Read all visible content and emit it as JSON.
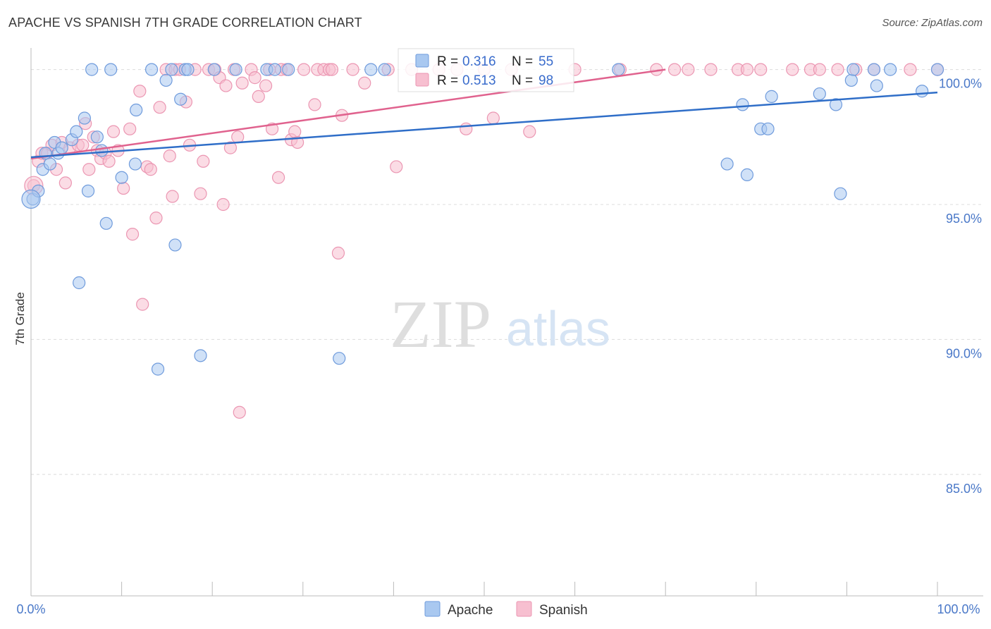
{
  "title": "APACHE VS SPANISH 7TH GRADE CORRELATION CHART",
  "source": "Source: ZipAtlas.com",
  "watermark": {
    "zip": "ZIP",
    "atlas": "atlas"
  },
  "colors": {
    "apache_fill": "#a9c8f0",
    "apache_stroke": "#6f9bdc",
    "apache_line": "#2f6ec8",
    "spanish_fill": "#f7bfd0",
    "spanish_stroke": "#eb96b2",
    "spanish_line": "#e0628e",
    "grid": "#dcdcdc",
    "tick_text": "#4a78c8"
  },
  "chart_data": {
    "type": "scatter",
    "title": "APACHE VS SPANISH 7TH GRADE CORRELATION CHART",
    "xlabel": "",
    "ylabel": "7th Grade",
    "xlim": [
      0,
      100
    ],
    "ylim": [
      80.5,
      100.8
    ],
    "x_tick_labels": [
      "0.0%",
      "100.0%"
    ],
    "y_ticks": [
      100,
      95,
      90,
      85
    ],
    "y_tick_labels": [
      "100.0%",
      "95.0%",
      "90.0%",
      "85.0%"
    ],
    "grid": true,
    "legend_placement": "top-center",
    "stats": [
      {
        "r_label": "R = ",
        "r_value": "0.316",
        "n_label": "N = ",
        "n_value": "55"
      },
      {
        "r_label": "R = ",
        "r_value": "0.513",
        "n_label": "N = ",
        "n_value": "98"
      }
    ],
    "series": [
      {
        "name": "Apache",
        "trend": [
          [
            0,
            96.75
          ],
          [
            100,
            99.15
          ]
        ],
        "points": [
          [
            0.2,
            95.2
          ],
          [
            0.8,
            95.5
          ],
          [
            1.3,
            96.3
          ],
          [
            1.6,
            96.9
          ],
          [
            2.1,
            96.5
          ],
          [
            2.6,
            97.3
          ],
          [
            3.0,
            96.9
          ],
          [
            3.4,
            97.1
          ],
          [
            4.5,
            97.4
          ],
          [
            5.0,
            97.7
          ],
          [
            5.9,
            98.2
          ],
          [
            6.3,
            95.5
          ],
          [
            7.3,
            97.5
          ],
          [
            7.8,
            97.0
          ],
          [
            8.3,
            94.3
          ],
          [
            5.3,
            92.1
          ],
          [
            6.7,
            100.0
          ],
          [
            8.8,
            100.0
          ],
          [
            10.0,
            96.0
          ],
          [
            11.5,
            96.5
          ],
          [
            11.6,
            98.5
          ],
          [
            13.3,
            100.0
          ],
          [
            14.0,
            88.9
          ],
          [
            14.9,
            99.6
          ],
          [
            15.5,
            100.0
          ],
          [
            15.9,
            93.5
          ],
          [
            16.5,
            98.9
          ],
          [
            17.0,
            100.0
          ],
          [
            17.3,
            100.0
          ],
          [
            18.7,
            89.4
          ],
          [
            20.2,
            100.0
          ],
          [
            22.6,
            100.0
          ],
          [
            26.0,
            100.0
          ],
          [
            26.9,
            100.0
          ],
          [
            28.4,
            100.0
          ],
          [
            34.0,
            89.3
          ],
          [
            37.5,
            100.0
          ],
          [
            39.0,
            100.0
          ],
          [
            64.8,
            100.0
          ],
          [
            76.8,
            96.5
          ],
          [
            78.5,
            98.7
          ],
          [
            79.0,
            96.1
          ],
          [
            80.5,
            97.8
          ],
          [
            81.3,
            97.8
          ],
          [
            81.7,
            99.0
          ],
          [
            87.0,
            99.1
          ],
          [
            88.8,
            98.7
          ],
          [
            89.3,
            95.4
          ],
          [
            90.5,
            99.6
          ],
          [
            90.7,
            100.0
          ],
          [
            93.0,
            100.0
          ],
          [
            93.3,
            99.4
          ],
          [
            94.8,
            100.0
          ],
          [
            98.3,
            99.2
          ],
          [
            100.0,
            100.0
          ]
        ]
      },
      {
        "name": "Spanish",
        "trend": [
          [
            0,
            96.7
          ],
          [
            70,
            100.0
          ]
        ],
        "points": [
          [
            0.3,
            95.7
          ],
          [
            0.8,
            96.6
          ],
          [
            1.2,
            96.9
          ],
          [
            1.8,
            96.9
          ],
          [
            2.3,
            97.2
          ],
          [
            2.8,
            96.3
          ],
          [
            3.4,
            97.3
          ],
          [
            3.8,
            95.8
          ],
          [
            4.3,
            97.1
          ],
          [
            5.2,
            97.2
          ],
          [
            5.7,
            97.2
          ],
          [
            6.0,
            98.0
          ],
          [
            6.4,
            96.3
          ],
          [
            6.9,
            97.5
          ],
          [
            7.3,
            97.0
          ],
          [
            7.7,
            96.7
          ],
          [
            8.2,
            96.9
          ],
          [
            8.6,
            96.6
          ],
          [
            9.1,
            97.7
          ],
          [
            9.6,
            97.0
          ],
          [
            10.2,
            95.6
          ],
          [
            10.9,
            97.8
          ],
          [
            11.2,
            93.9
          ],
          [
            12.0,
            99.2
          ],
          [
            12.3,
            91.3
          ],
          [
            12.8,
            96.4
          ],
          [
            13.2,
            96.3
          ],
          [
            13.8,
            94.5
          ],
          [
            14.2,
            98.6
          ],
          [
            14.9,
            100.0
          ],
          [
            15.3,
            96.8
          ],
          [
            15.6,
            95.3
          ],
          [
            15.9,
            100.0
          ],
          [
            16.4,
            100.0
          ],
          [
            17.1,
            98.8
          ],
          [
            17.5,
            97.2
          ],
          [
            18.1,
            100.0
          ],
          [
            18.7,
            95.4
          ],
          [
            19.0,
            96.6
          ],
          [
            19.6,
            100.0
          ],
          [
            20.3,
            100.0
          ],
          [
            20.8,
            99.7
          ],
          [
            21.2,
            95.0
          ],
          [
            21.5,
            99.4
          ],
          [
            22.0,
            97.1
          ],
          [
            22.4,
            100.0
          ],
          [
            22.8,
            97.5
          ],
          [
            23.3,
            99.5
          ],
          [
            23.0,
            87.3
          ],
          [
            24.3,
            100.0
          ],
          [
            24.7,
            99.7
          ],
          [
            25.1,
            99.0
          ],
          [
            25.9,
            99.4
          ],
          [
            26.3,
            100.0
          ],
          [
            26.6,
            97.8
          ],
          [
            27.3,
            96.0
          ],
          [
            27.6,
            100.0
          ],
          [
            28.2,
            100.0
          ],
          [
            28.7,
            97.4
          ],
          [
            29.1,
            97.7
          ],
          [
            29.4,
            97.3
          ],
          [
            30.1,
            100.0
          ],
          [
            31.3,
            98.7
          ],
          [
            31.6,
            100.0
          ],
          [
            32.3,
            100.0
          ],
          [
            32.9,
            100.0
          ],
          [
            33.2,
            100.0
          ],
          [
            33.9,
            93.2
          ],
          [
            34.3,
            98.3
          ],
          [
            35.5,
            100.0
          ],
          [
            36.8,
            99.5
          ],
          [
            39.4,
            100.0
          ],
          [
            40.3,
            96.4
          ],
          [
            42.0,
            100.0
          ],
          [
            45.0,
            100.0
          ],
          [
            47.0,
            100.0
          ],
          [
            48.0,
            97.8
          ],
          [
            50.0,
            100.0
          ],
          [
            51.0,
            98.2
          ],
          [
            53.0,
            100.0
          ],
          [
            55.0,
            97.7
          ],
          [
            60.0,
            100.0
          ],
          [
            65.0,
            100.0
          ],
          [
            69.0,
            100.0
          ],
          [
            71.0,
            100.0
          ],
          [
            72.5,
            100.0
          ],
          [
            75.0,
            100.0
          ],
          [
            78.0,
            100.0
          ],
          [
            79.0,
            100.0
          ],
          [
            80.5,
            100.0
          ],
          [
            84.0,
            100.0
          ],
          [
            86.0,
            100.0
          ],
          [
            87.0,
            100.0
          ],
          [
            89.0,
            100.0
          ],
          [
            91.0,
            100.0
          ],
          [
            93.0,
            100.0
          ],
          [
            97.0,
            100.0
          ],
          [
            100.0,
            100.0
          ]
        ]
      }
    ]
  }
}
